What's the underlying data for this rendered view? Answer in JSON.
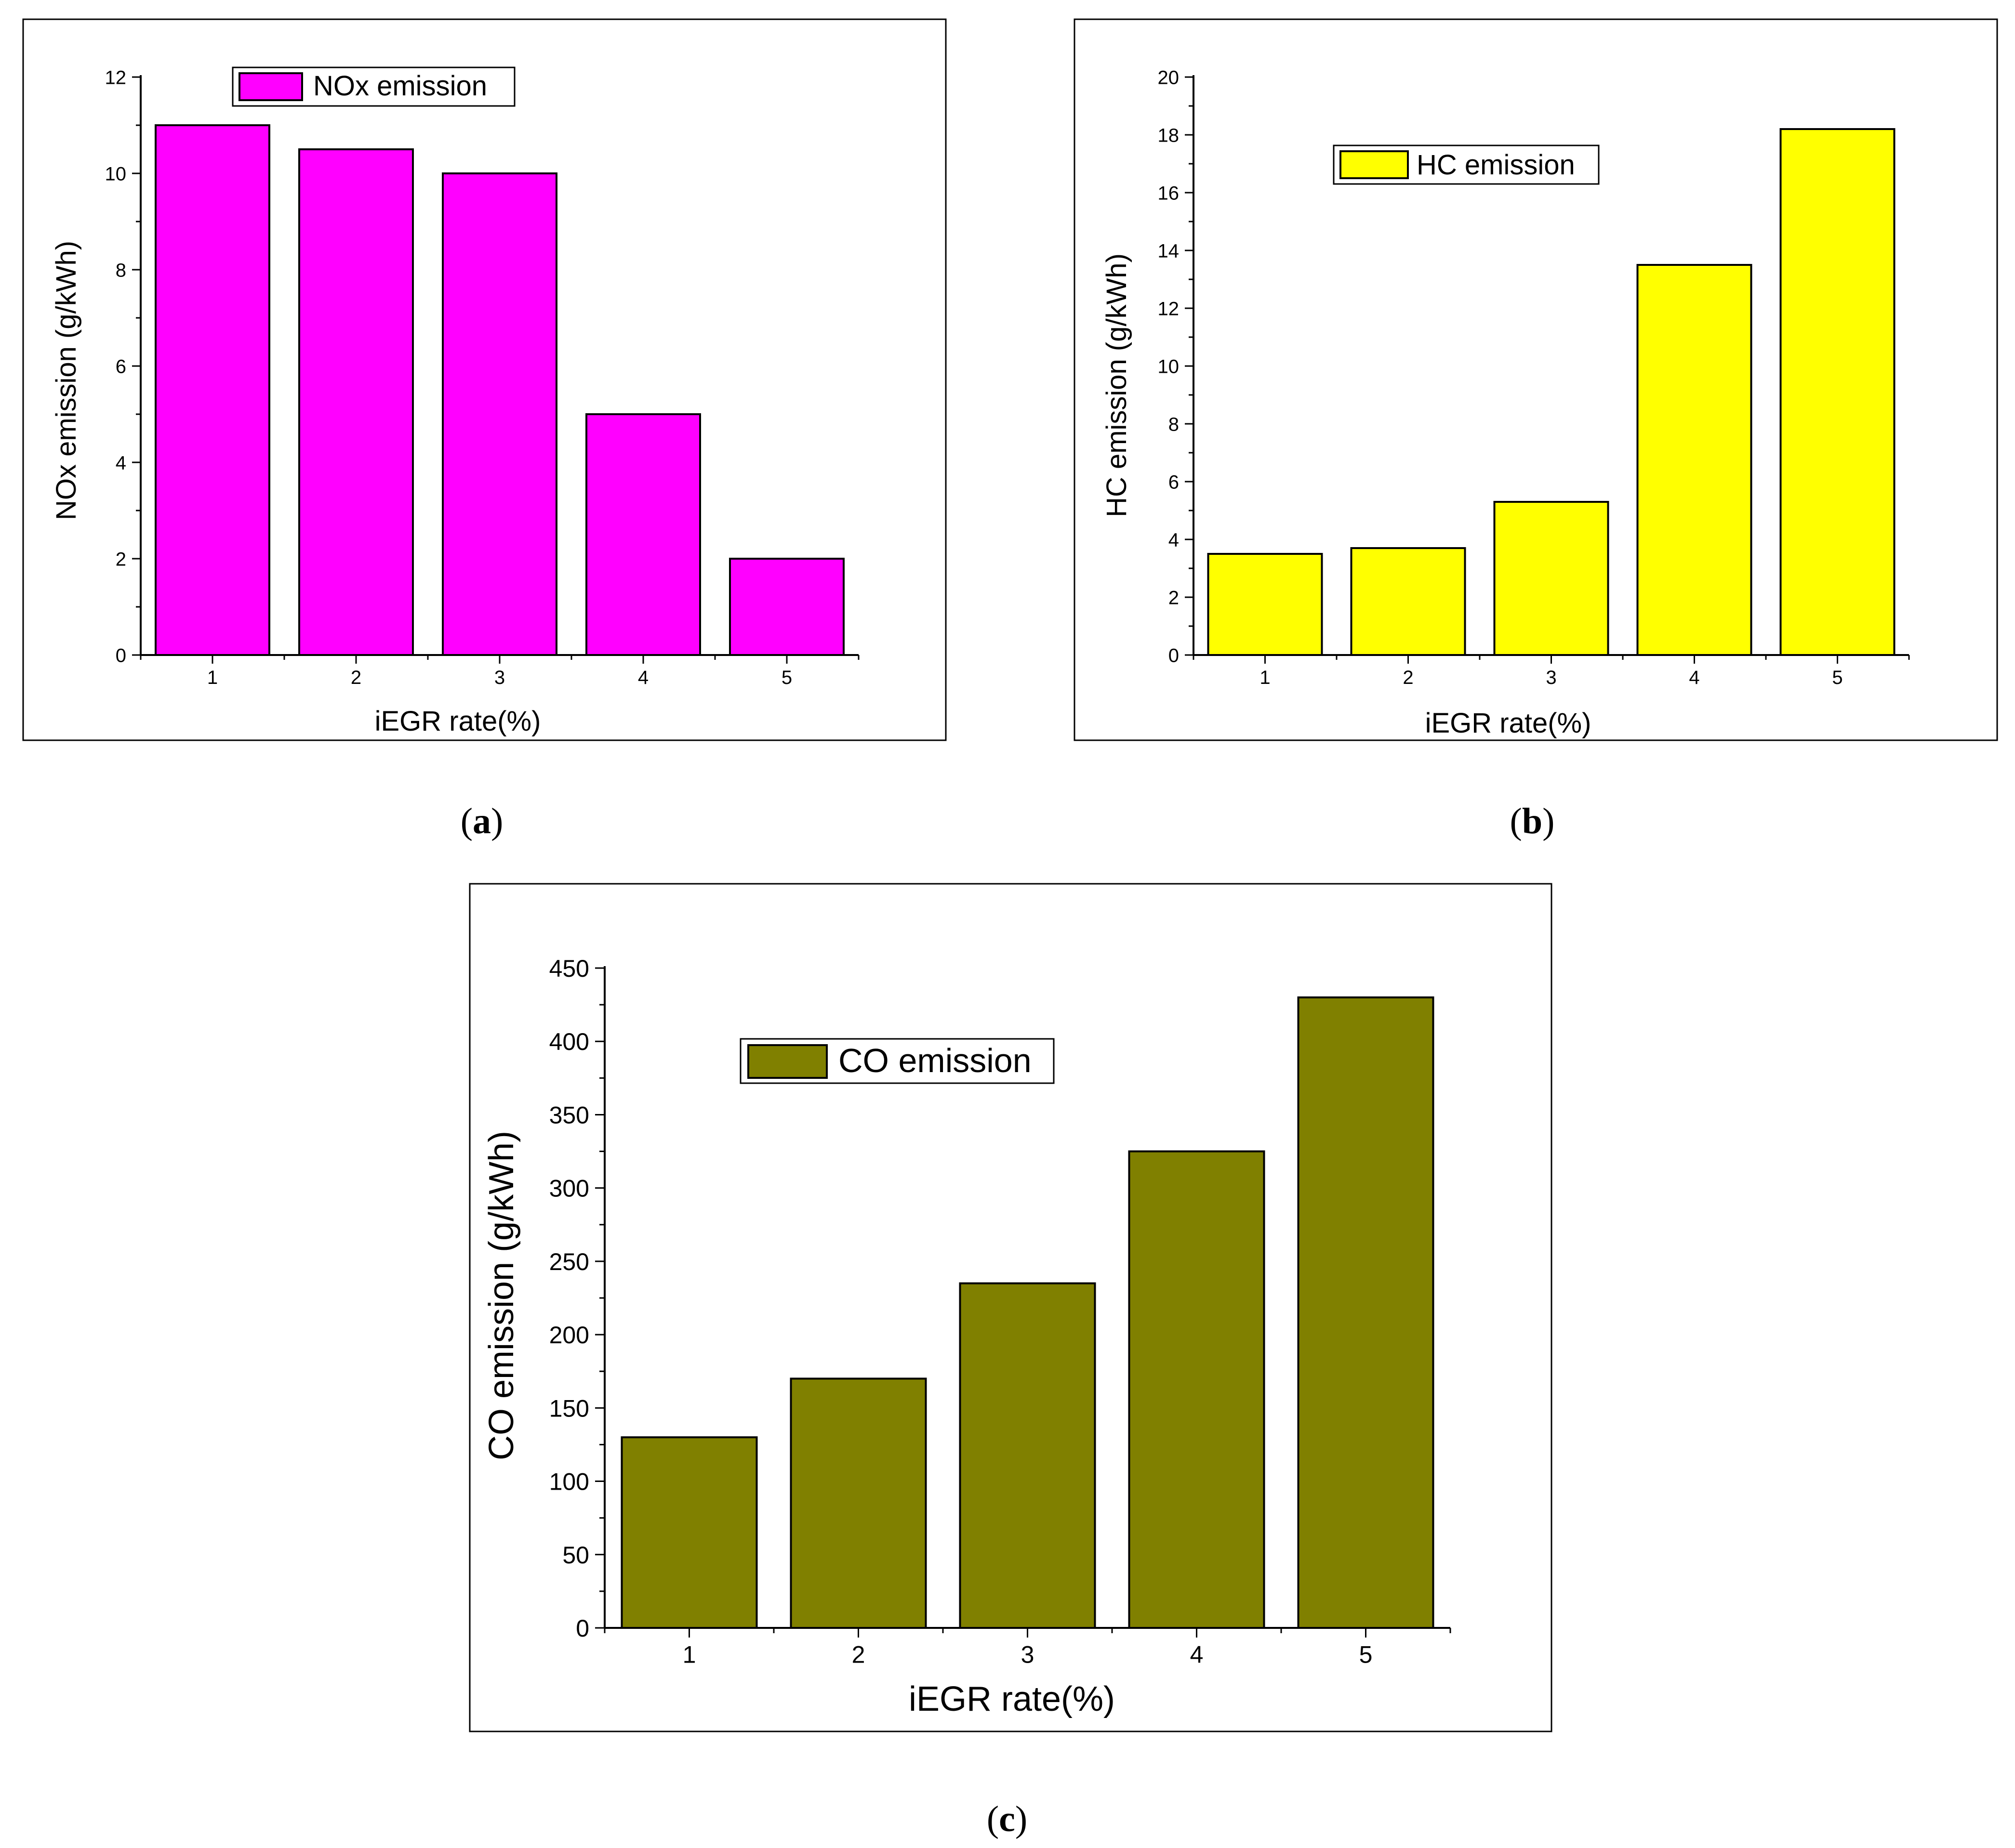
{
  "chart_data": [
    {
      "type": "bar",
      "panel_label": "a",
      "categories": [
        "1",
        "2",
        "3",
        "4",
        "5"
      ],
      "values": [
        11,
        10.5,
        10,
        5,
        2
      ],
      "series_name": "NOx emission",
      "color": "#ff00ff",
      "xlabel": "iEGR rate(%)",
      "ylabel": "NOx emission (g/kWh)",
      "ylim": [
        0,
        12
      ],
      "yticks": [
        "0",
        "2",
        "4",
        "6",
        "8",
        "10",
        "12"
      ],
      "legend_position": "top-center"
    },
    {
      "type": "bar",
      "panel_label": "b",
      "categories": [
        "1",
        "2",
        "3",
        "4",
        "5"
      ],
      "values": [
        3.5,
        3.7,
        5.3,
        13.5,
        18.2
      ],
      "series_name": "HC emission",
      "color": "#ffff00",
      "xlabel": "iEGR rate(%)",
      "ylabel": "HC emission (g/kWh)",
      "ylim": [
        0,
        20
      ],
      "yticks": [
        "0",
        "2",
        "4",
        "6",
        "8",
        "10",
        "12",
        "14",
        "16",
        "18",
        "20"
      ],
      "legend_position": "top-center"
    },
    {
      "type": "bar",
      "panel_label": "c",
      "categories": [
        "1",
        "2",
        "3",
        "4",
        "5"
      ],
      "values": [
        130,
        170,
        235,
        325,
        430
      ],
      "series_name": "CO emission",
      "color": "#808000",
      "xlabel": "iEGR rate(%)",
      "ylabel": "CO emission (g/kWh)",
      "ylim": [
        0,
        450
      ],
      "yticks": [
        "0",
        "50",
        "100",
        "150",
        "200",
        "250",
        "300",
        "350",
        "400",
        "450"
      ],
      "legend_position": "top-left"
    }
  ],
  "captions": [
    {
      "open": "(",
      "letter": "a",
      "close": ")"
    },
    {
      "open": "(",
      "letter": "b",
      "close": ")"
    },
    {
      "open": "(",
      "letter": "c",
      "close": ")"
    }
  ]
}
